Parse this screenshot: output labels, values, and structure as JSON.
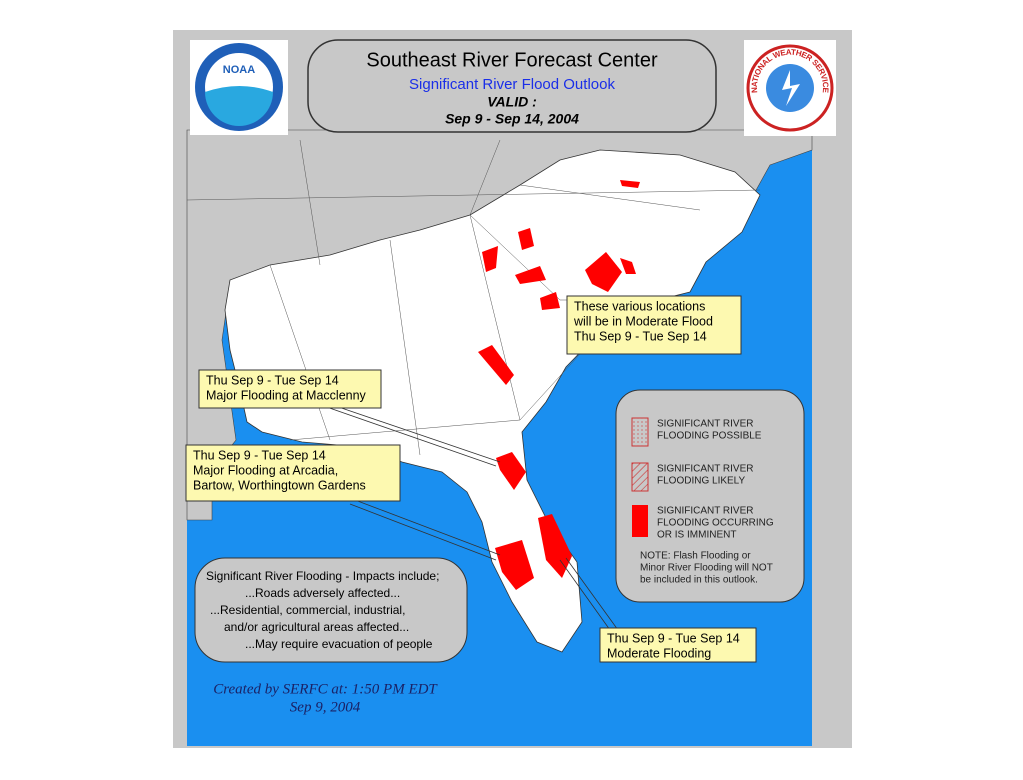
{
  "header": {
    "title": "Southeast River Forecast Center",
    "subtitle": "Significant River Flood Outlook",
    "valid": "VALID :",
    "dates": "Sep 9 - Sep 14, 2004"
  },
  "logos": {
    "noaa": "NOAA",
    "nws": "NATIONAL WEATHER SERVICE"
  },
  "callouts": [
    {
      "lines": [
        "These various locations",
        "will be in Moderate Flood",
        "Thu  Sep 9 - Tue Sep 14"
      ]
    },
    {
      "lines": [
        "Thu Sep 9 - Tue Sep 14",
        "Major Flooding at Macclenny"
      ]
    },
    {
      "lines": [
        "Thu Sep 9 - Tue Sep 14",
        "Major Flooding at Arcadia,",
        "Bartow, Worthingtown Gardens"
      ]
    },
    {
      "lines": [
        "Thu Sep 9 - Tue Sep 14",
        "Moderate Flooding"
      ]
    }
  ],
  "legend": {
    "items": [
      {
        "lines": [
          "SIGNIFICANT RIVER",
          "FLOODING POSSIBLE"
        ]
      },
      {
        "lines": [
          "SIGNIFICANT RIVER",
          "FLOODING LIKELY"
        ]
      },
      {
        "lines": [
          "SIGNIFICANT RIVER",
          "FLOODING OCCURRING",
          "OR IS IMMINENT"
        ]
      }
    ],
    "note": [
      "NOTE: Flash Flooding or",
      "Minor River Flooding will NOT",
      "be included in this outlook."
    ]
  },
  "impacts": [
    "Significant River Flooding - Impacts include;",
    "...Roads adversely affected...",
    "...Residential, commercial, industrial,",
    "and/or agricultural areas affected...",
    "...May require evacuation of people"
  ],
  "credit": [
    "Created by SERFC at: 1:50 PM EDT",
    "Sep 9, 2004"
  ]
}
